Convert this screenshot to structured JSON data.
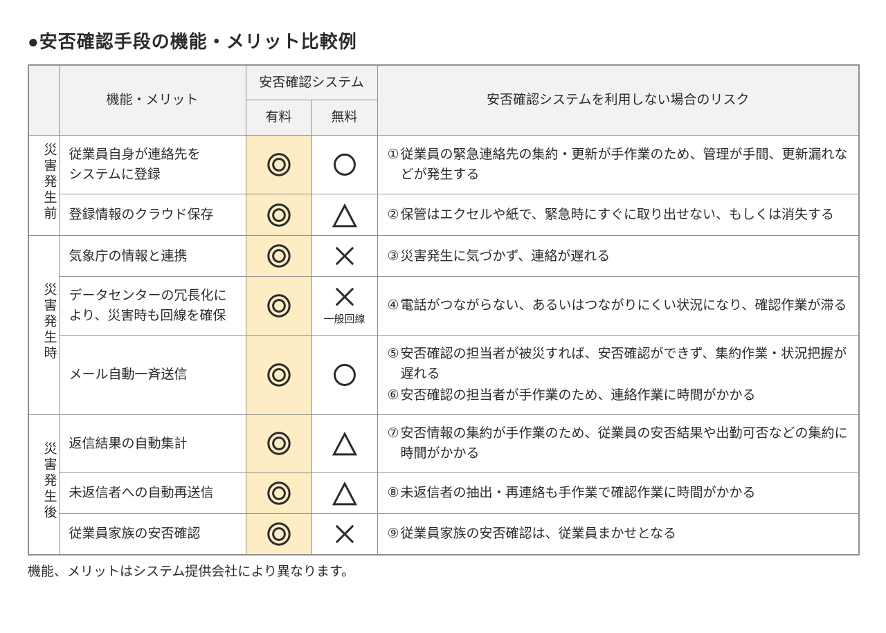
{
  "title": "●安否確認手段の機能・メリット比較例",
  "headers": {
    "feature": "機能・メリット",
    "system_group": "安否確認システム",
    "paid": "有料",
    "free": "無料",
    "risk": "安否確認システムを利用しない場合のリスク"
  },
  "phases": [
    {
      "label": "災害発生前",
      "rowspan": 2
    },
    {
      "label": "災害発生時",
      "rowspan": 3
    },
    {
      "label": "災害発生後",
      "rowspan": 3
    }
  ],
  "rows": [
    {
      "phase_idx": 0,
      "feature": "従業員自身が連絡先を\nシステムに登録",
      "paid": "double-circle",
      "free": "circle",
      "risks": [
        {
          "num": "①",
          "text": "従業員の緊急連絡先の集約・更新が手作業のため、管理が手間、更新漏れなどが発生する"
        }
      ]
    },
    {
      "phase_idx": 0,
      "feature": "登録情報のクラウド保存",
      "paid": "double-circle",
      "free": "triangle",
      "risks": [
        {
          "num": "②",
          "text": "保管はエクセルや紙で、緊急時にすぐに取り出せない、もしくは消失する"
        }
      ]
    },
    {
      "phase_idx": 1,
      "feature": "気象庁の情報と連携",
      "paid": "double-circle",
      "free": "cross",
      "risks": [
        {
          "num": "③",
          "text": "災害発生に気づかず、連絡が遅れる"
        }
      ]
    },
    {
      "phase_idx": 1,
      "feature": "データセンターの冗長化により、災害時も回線を確保",
      "paid": "double-circle",
      "free": "cross",
      "free_sub": "一般回線",
      "risks": [
        {
          "num": "④",
          "text": "電話がつながらない、あるいはつながりにくい状況になり、確認作業が滞る"
        }
      ]
    },
    {
      "phase_idx": 1,
      "feature": "メール自動一斉送信",
      "paid": "double-circle",
      "free": "circle",
      "risks": [
        {
          "num": "⑤",
          "text": "安否確認の担当者が被災すれば、安否確認ができず、集約作業・状況把握が遅れる"
        },
        {
          "num": "⑥",
          "text": "安否確認の担当者が手作業のため、連絡作業に時間がかかる"
        }
      ]
    },
    {
      "phase_idx": 2,
      "feature": "返信結果の自動集計",
      "paid": "double-circle",
      "free": "triangle",
      "risks": [
        {
          "num": "⑦",
          "text": "安否情報の集約が手作業のため、従業員の安否結果や出勤可否などの集約に時間がかかる"
        }
      ]
    },
    {
      "phase_idx": 2,
      "feature": "未返信者への自動再送信",
      "paid": "double-circle",
      "free": "triangle",
      "risks": [
        {
          "num": "⑧",
          "text": "未返信者の抽出・再連絡も手作業で確認作業に時間がかかる"
        }
      ]
    },
    {
      "phase_idx": 2,
      "feature": "従業員家族の安否確認",
      "paid": "double-circle",
      "free": "cross",
      "risks": [
        {
          "num": "⑨",
          "text": "従業員家族の安否確認は、従業員まかせとなる"
        }
      ]
    }
  ],
  "footnote": "機能、メリットはシステム提供会社により異なります。",
  "marks": {
    "stroke": "#2b2b2b",
    "stroke_width": 3,
    "size": 38
  },
  "colors": {
    "header_bg": "#f2f2f2",
    "paid_bg": "#fdecc4",
    "border": "#8f8f8f",
    "text": "#2b2b2b",
    "background": "#ffffff"
  },
  "typography": {
    "title_fontsize": 26,
    "body_fontsize": 19,
    "sub_fontsize": 15
  }
}
